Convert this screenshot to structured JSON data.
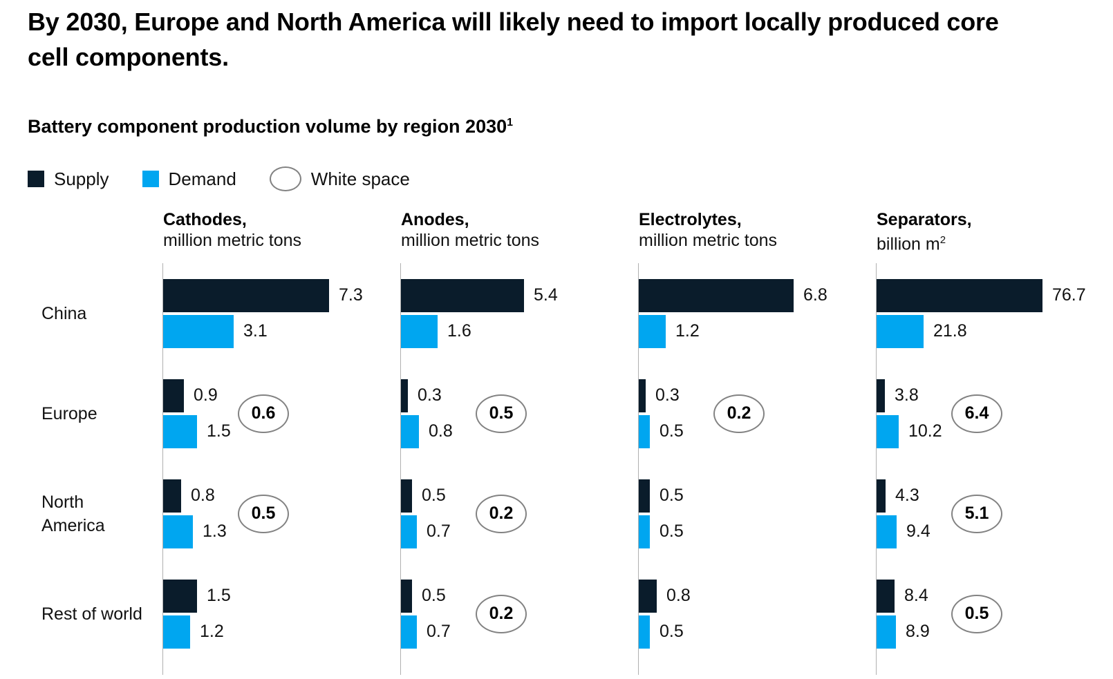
{
  "header": {
    "title": "By 2030, Europe and North America will likely need to import locally produced core cell components."
  },
  "colors": {
    "supply": "#0a1c2b",
    "demand": "#00a6f0",
    "ellipse_border": "#828282",
    "axis_line": "#b0b0b0"
  },
  "chart_data": {
    "type": "bar",
    "orientation": "horizontal",
    "title": "Battery component production volume by region 2030",
    "footnote_marker": "1",
    "legend": [
      "Supply",
      "Demand",
      "White space"
    ],
    "legend_position": "top",
    "grid": false,
    "categories": [
      "China",
      "Europe",
      "North America",
      "Rest of world"
    ],
    "panels": [
      {
        "name": "Cathodes,",
        "unit": "million metric tons",
        "unit_sup": "",
        "axis_max": 7.3,
        "series": [
          {
            "name": "Supply",
            "values": [
              7.3,
              0.9,
              0.8,
              1.5
            ]
          },
          {
            "name": "Demand",
            "values": [
              3.1,
              1.5,
              1.3,
              1.2
            ]
          }
        ],
        "white_space": [
          null,
          0.6,
          0.5,
          null
        ]
      },
      {
        "name": "Anodes,",
        "unit": "million metric tons",
        "unit_sup": "",
        "axis_max": 7.3,
        "series": [
          {
            "name": "Supply",
            "values": [
              5.4,
              0.3,
              0.5,
              0.5
            ]
          },
          {
            "name": "Demand",
            "values": [
              1.6,
              0.8,
              0.7,
              0.7
            ]
          }
        ],
        "white_space": [
          null,
          0.5,
          0.2,
          0.2
        ]
      },
      {
        "name": "Electrolytes,",
        "unit": "million metric tons",
        "unit_sup": "",
        "axis_max": 7.3,
        "series": [
          {
            "name": "Supply",
            "values": [
              6.8,
              0.3,
              0.5,
              0.8
            ]
          },
          {
            "name": "Demand",
            "values": [
              1.2,
              0.5,
              0.5,
              0.5
            ]
          }
        ],
        "white_space": [
          null,
          0.2,
          null,
          null
        ]
      },
      {
        "name": "Separators,",
        "unit": "billion m",
        "unit_sup": "2",
        "axis_max": 76.7,
        "series": [
          {
            "name": "Supply",
            "values": [
              76.7,
              3.8,
              4.3,
              8.4
            ]
          },
          {
            "name": "Demand",
            "values": [
              21.8,
              10.2,
              9.4,
              8.9
            ]
          }
        ],
        "white_space": [
          null,
          6.4,
          5.1,
          0.5
        ]
      }
    ]
  }
}
